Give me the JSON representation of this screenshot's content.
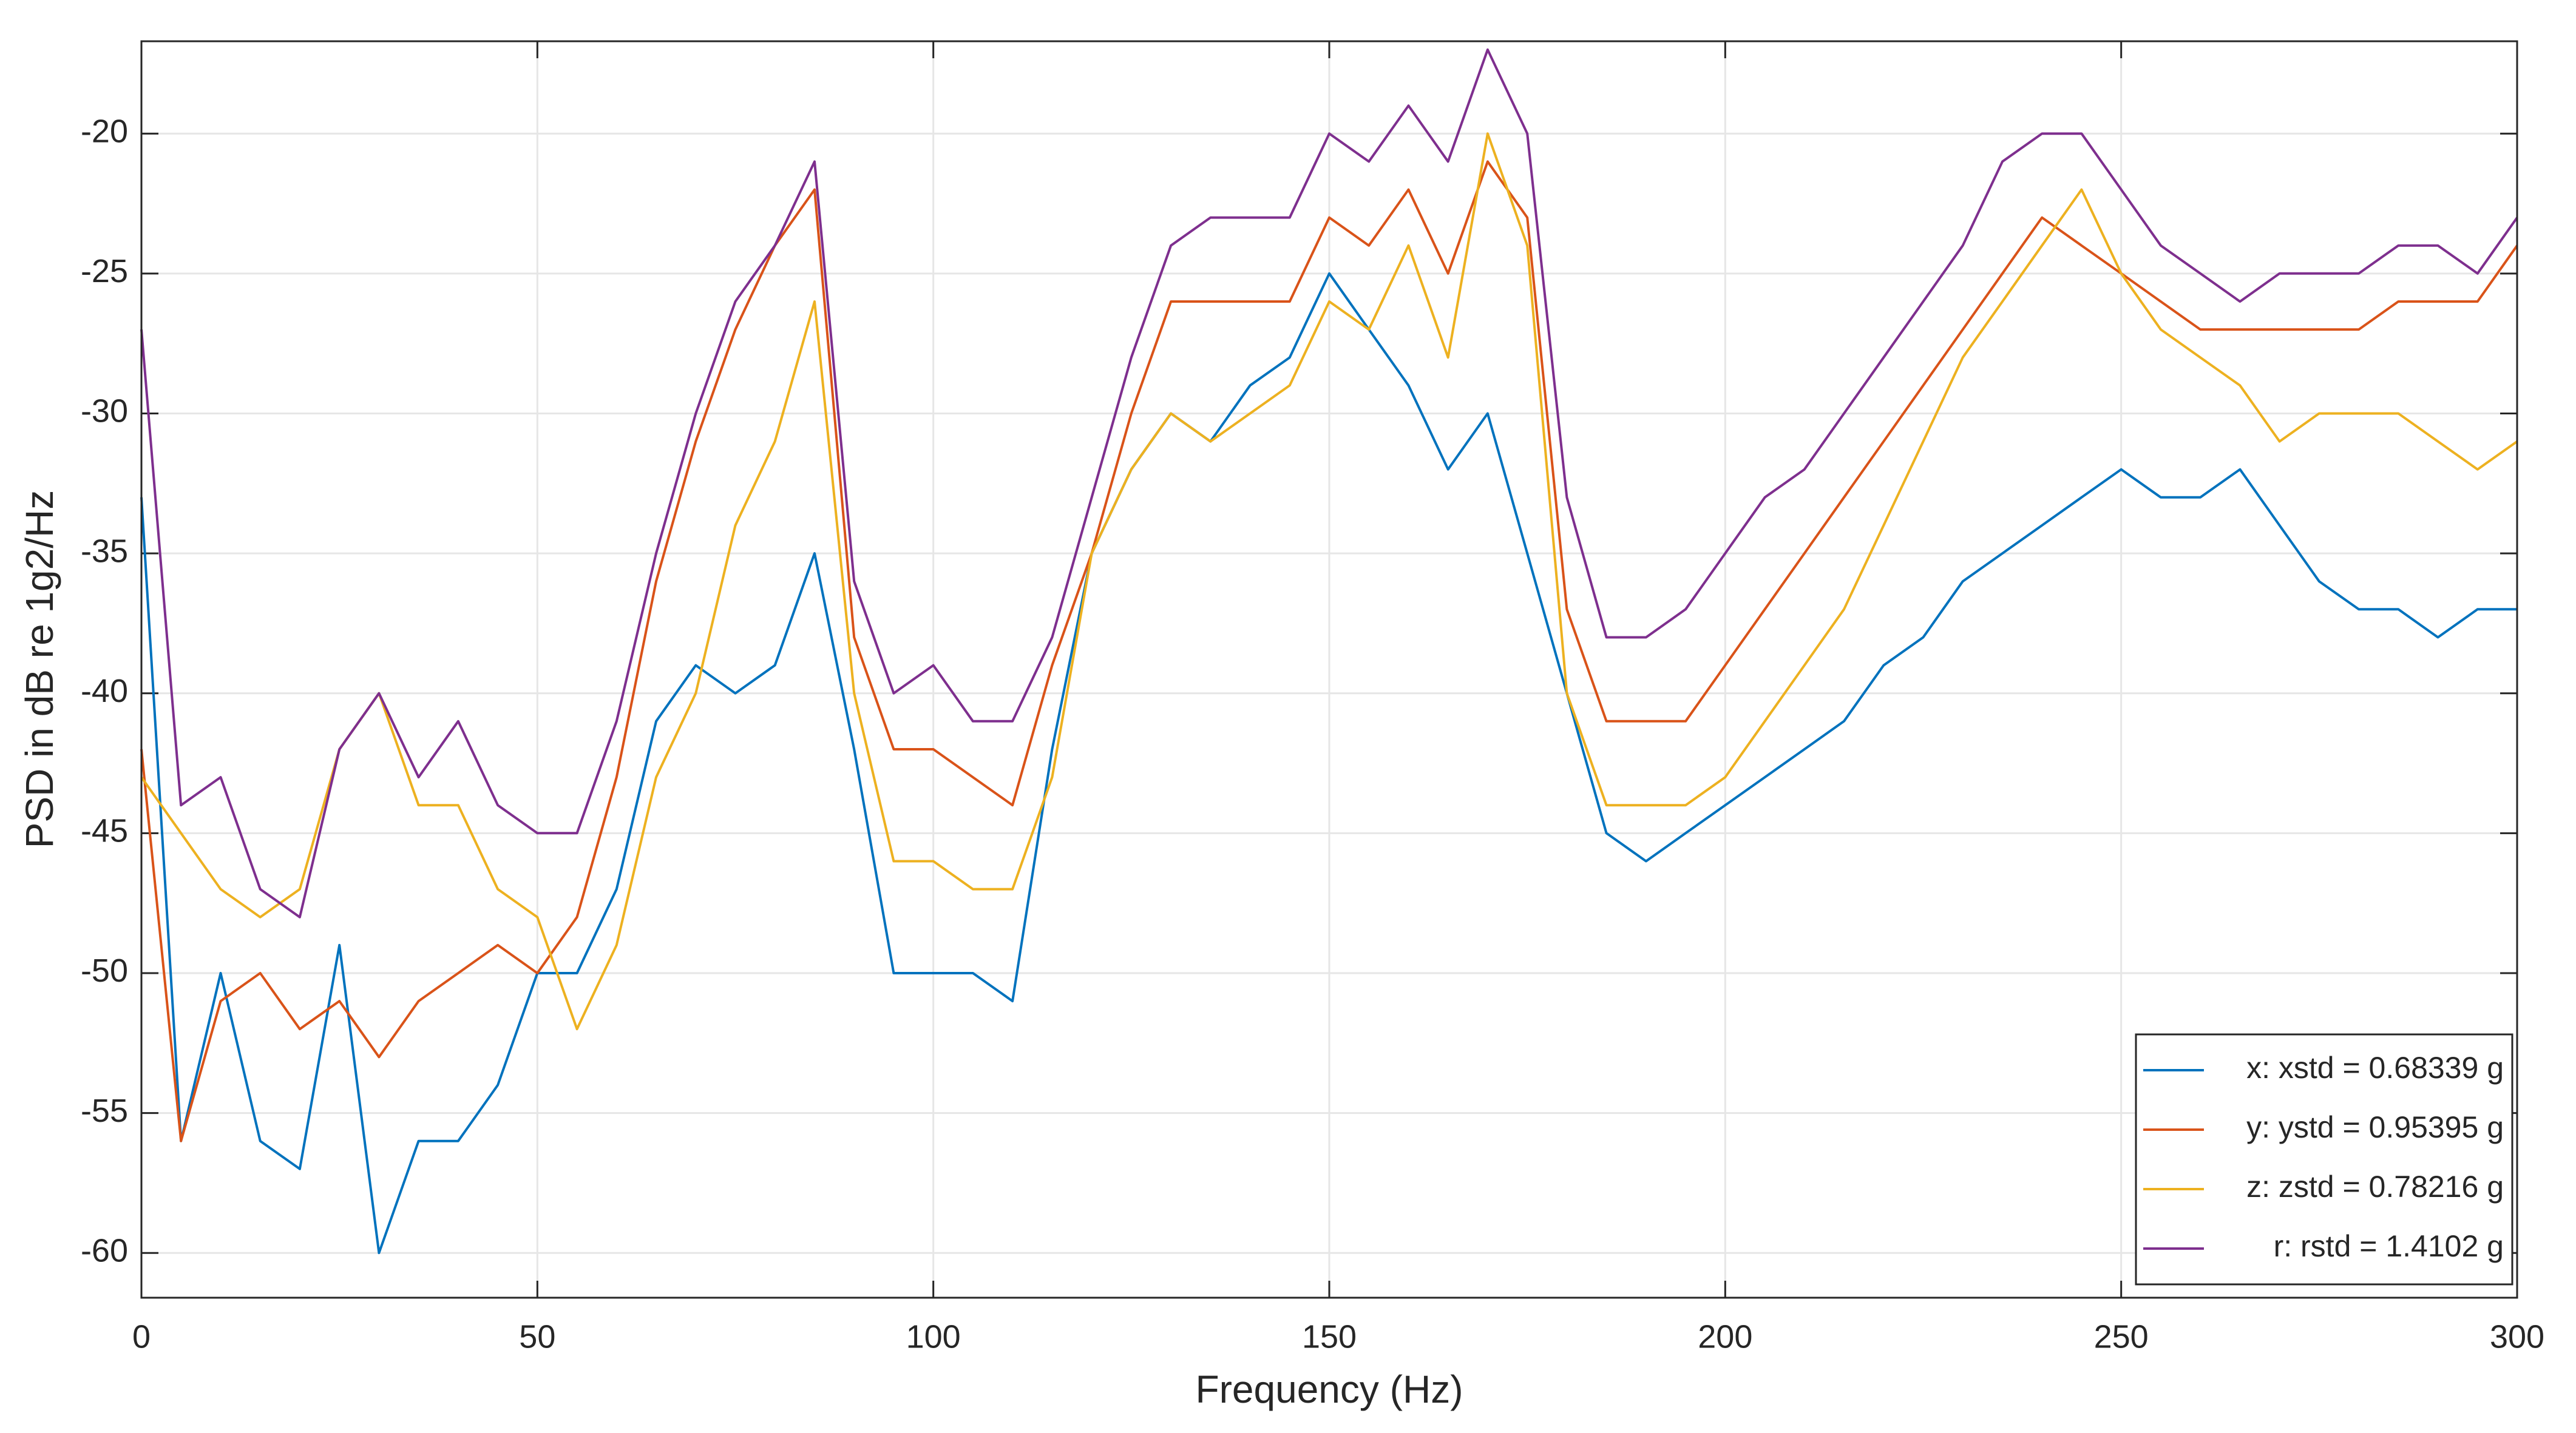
{
  "chart_data": {
    "type": "line",
    "xlabel": "Frequency (Hz)",
    "ylabel": "PSD in dB re 1g2/Hz",
    "x": [
      0,
      5,
      10,
      15,
      20,
      25,
      30,
      35,
      40,
      45,
      50,
      55,
      60,
      65,
      70,
      75,
      80,
      85,
      90,
      95,
      100,
      105,
      110,
      115,
      120,
      125,
      130,
      135,
      140,
      145,
      150,
      155,
      160,
      165,
      170,
      175,
      180,
      185,
      190,
      195,
      200,
      205,
      210,
      215,
      220,
      225,
      230,
      235,
      240,
      245,
      250,
      255,
      260,
      265,
      270,
      275,
      280,
      285,
      290,
      295,
      300
    ],
    "series": [
      {
        "name": "x: xstd = 0.68339 g",
        "color": "#0072BD",
        "values": [
          -33,
          -56,
          -50,
          -56,
          -57,
          -49,
          -60,
          -56,
          -56,
          -54,
          -50,
          -50,
          -47,
          -41,
          -39,
          -40,
          -39,
          -35,
          -42,
          -50,
          -50,
          -50,
          -51,
          -42,
          -35,
          -32,
          -30,
          -31,
          -29,
          -28,
          -25,
          -27,
          -29,
          -32,
          -30,
          -35,
          -40,
          -45,
          -46,
          -45,
          -44,
          -43,
          -42,
          -41,
          -39,
          -38,
          -36,
          -35,
          -34,
          -33,
          -32,
          -33,
          -33,
          -32,
          -34,
          -36,
          -37,
          -37,
          -38,
          -37,
          -37
        ]
      },
      {
        "name": "y: ystd = 0.95395 g",
        "color": "#D95319",
        "values": [
          -42,
          -56,
          -51,
          -50,
          -52,
          -51,
          -53,
          -51,
          -50,
          -49,
          -50,
          -48,
          -43,
          -36,
          -31,
          -27,
          -24,
          -22,
          -38,
          -42,
          -42,
          -43,
          -44,
          -39,
          -35,
          -30,
          -26,
          -26,
          -26,
          -26,
          -23,
          -24,
          -22,
          -25,
          -21,
          -23,
          -37,
          -41,
          -41,
          -41,
          -39,
          -37,
          -35,
          -33,
          -31,
          -29,
          -27,
          -25,
          -23,
          -24,
          -25,
          -26,
          -27,
          -27,
          -27,
          -27,
          -27,
          -26,
          -26,
          -26,
          -24
        ]
      },
      {
        "name": "z: zstd = 0.78216 g",
        "color": "#EDB120",
        "values": [
          -43,
          -45,
          -47,
          -48,
          -47,
          -42,
          -40,
          -44,
          -44,
          -47,
          -48,
          -52,
          -49,
          -43,
          -40,
          -34,
          -31,
          -26,
          -40,
          -46,
          -46,
          -47,
          -47,
          -43,
          -35,
          -32,
          -30,
          -31,
          -30,
          -29,
          -26,
          -27,
          -24,
          -28,
          -20,
          -24,
          -40,
          -44,
          -44,
          -44,
          -43,
          -41,
          -39,
          -37,
          -34,
          -31,
          -28,
          -26,
          -24,
          -22,
          -25,
          -27,
          -28,
          -29,
          -31,
          -30,
          -30,
          -30,
          -31,
          -32,
          -31
        ]
      },
      {
        "name": "r: rstd = 1.4102 g",
        "color": "#7E2F8E",
        "values": [
          -27,
          -44,
          -43,
          -47,
          -48,
          -42,
          -40,
          -43,
          -41,
          -44,
          -45,
          -45,
          -41,
          -35,
          -30,
          -26,
          -24,
          -21,
          -36,
          -40,
          -39,
          -41,
          -41,
          -38,
          -33,
          -28,
          -24,
          -23,
          -23,
          -23,
          -20,
          -21,
          -19,
          -21,
          -17,
          -20,
          -33,
          -38,
          -38,
          -37,
          -35,
          -33,
          -32,
          -30,
          -28,
          -26,
          -24,
          -21,
          -20,
          -20,
          -22,
          -24,
          -25,
          -26,
          -25,
          -25,
          -25,
          -24,
          -24,
          -25,
          -23
        ]
      }
    ],
    "xlim": [
      0,
      300
    ],
    "xticks": [
      0,
      50,
      100,
      150,
      200,
      250,
      300
    ],
    "ylim": [
      -61.6,
      -16.7
    ],
    "yticks": [
      -60,
      -55,
      -50,
      -45,
      -40,
      -35,
      -30,
      -25,
      -20
    ],
    "grid": true,
    "legend": "lower right"
  }
}
